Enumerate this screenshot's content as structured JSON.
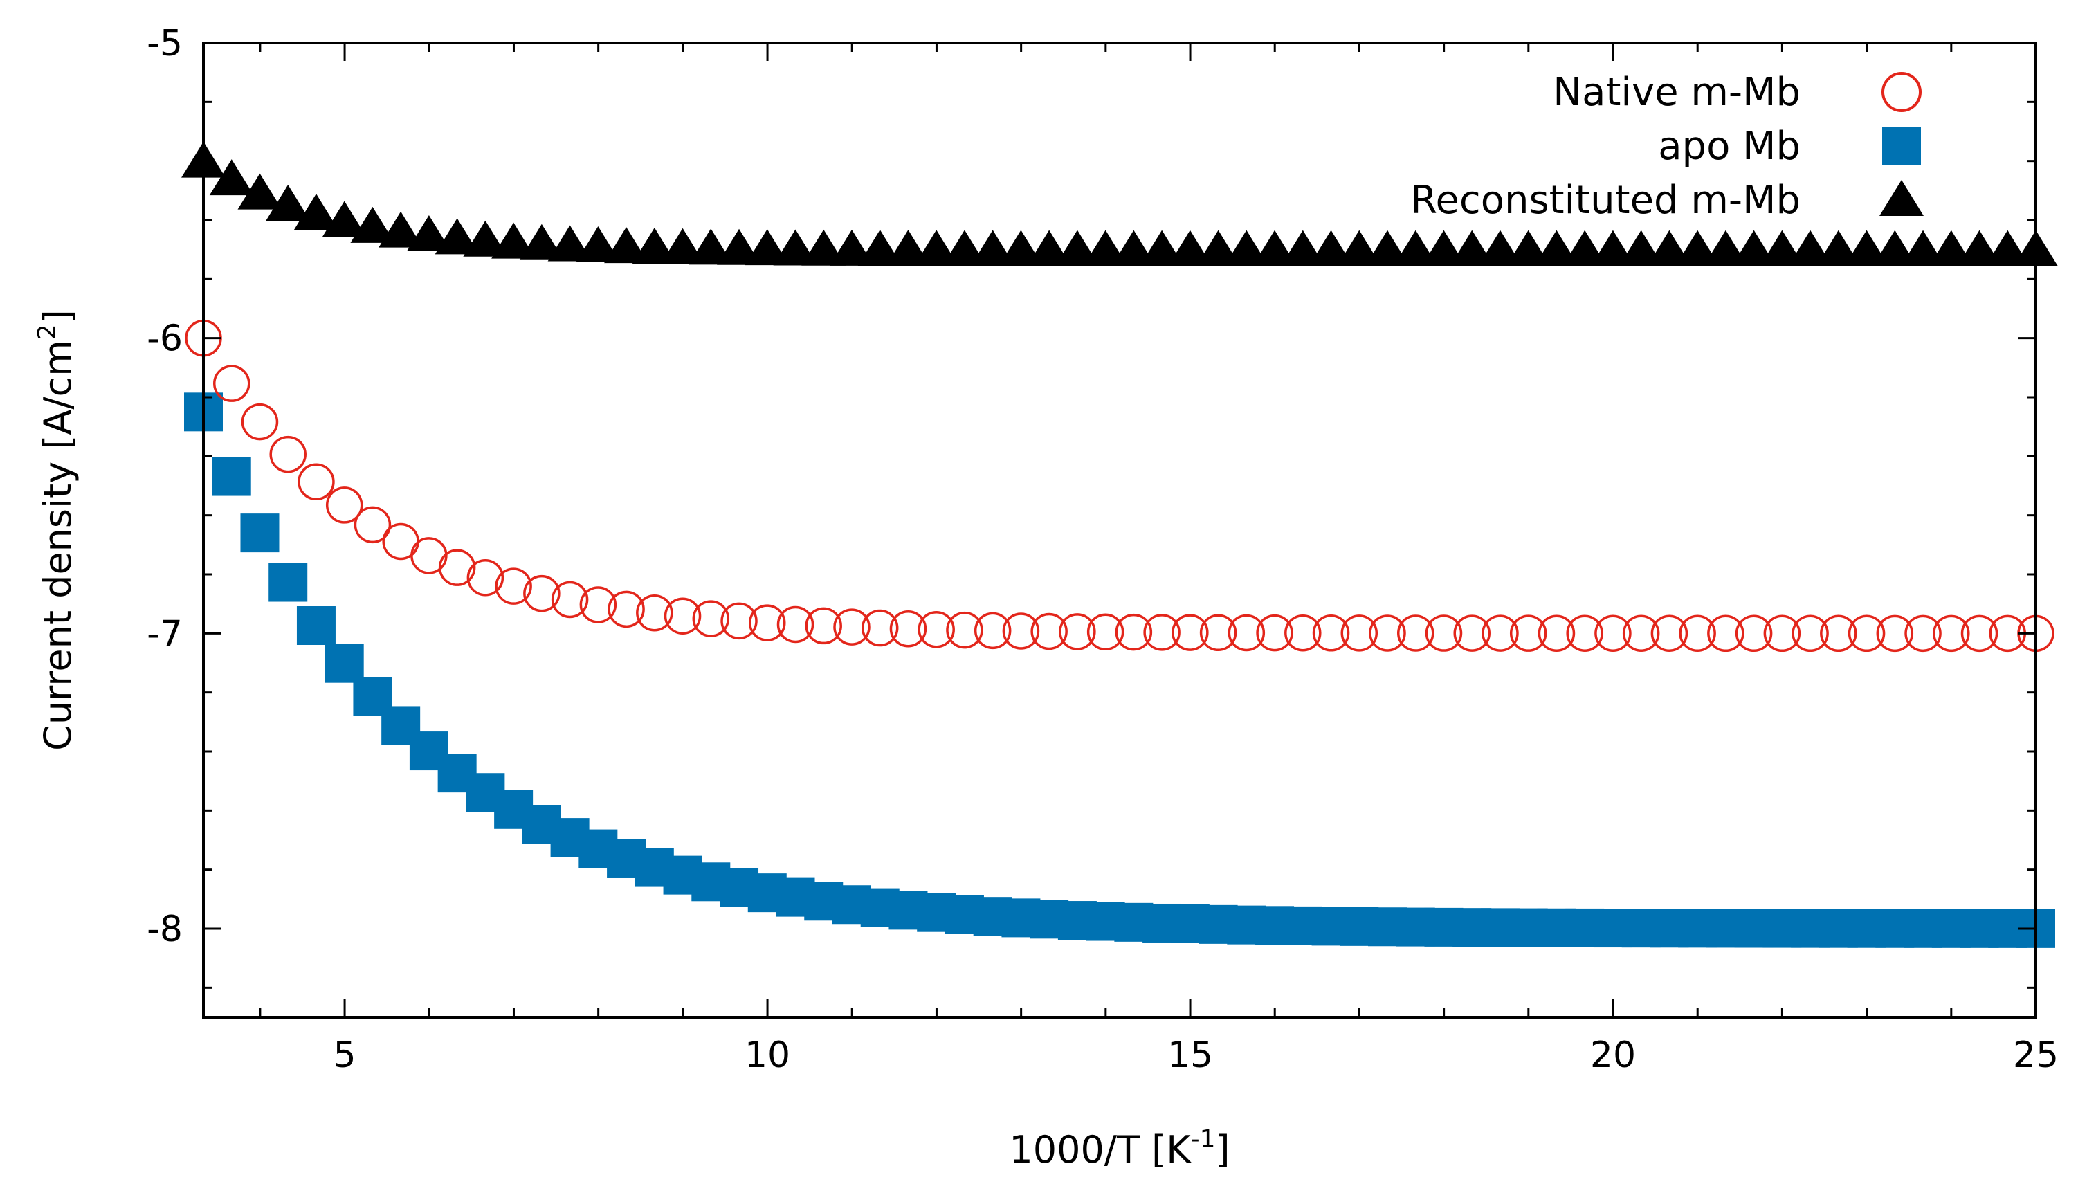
{
  "chart_data": {
    "type": "scatter",
    "title": "",
    "xlabel_parts": [
      "1000/T [K",
      "-1",
      "]"
    ],
    "ylabel_parts": [
      "Current density [A/cm",
      "2",
      "]"
    ],
    "xlim": [
      3.33,
      25
    ],
    "ylim": [
      -8.3,
      -5
    ],
    "xticks": [
      5,
      10,
      15,
      20,
      25
    ],
    "xtick_labels": [
      "5",
      "10",
      "15",
      "20",
      "25"
    ],
    "yticks": [
      -8,
      -7,
      -6,
      -5
    ],
    "ytick_labels": [
      "-8",
      "-7",
      "-6",
      "-5"
    ],
    "grid": false,
    "legend_position": "top-right",
    "x_start": 3.33,
    "x_step": 0.333,
    "x_end": 25,
    "series": [
      {
        "name": "Native m-Mb",
        "marker": "open-circle",
        "color": "#e3261b",
        "model": "plateau + amplitude*exp(-(x - x0)/decay)",
        "plateau": -7.0,
        "amplitude": 1.0,
        "x0": 3.33,
        "decay": 2.0
      },
      {
        "name": "apo Mb",
        "marker": "filled-square",
        "color": "#0072b2",
        "model": "plateau + amplitude*exp(-(x - x0)/decay)",
        "plateau": -8.0,
        "amplitude": 1.75,
        "x0": 3.33,
        "decay": 2.5
      },
      {
        "name": "Reconstituted m-Mb",
        "marker": "filled-triangle",
        "color": "#000000",
        "model": "plateau + amplitude*exp(-(x - x0)/decay)",
        "plateau": -5.7,
        "amplitude": 0.3,
        "x0": 3.33,
        "decay": 1.5
      }
    ]
  }
}
